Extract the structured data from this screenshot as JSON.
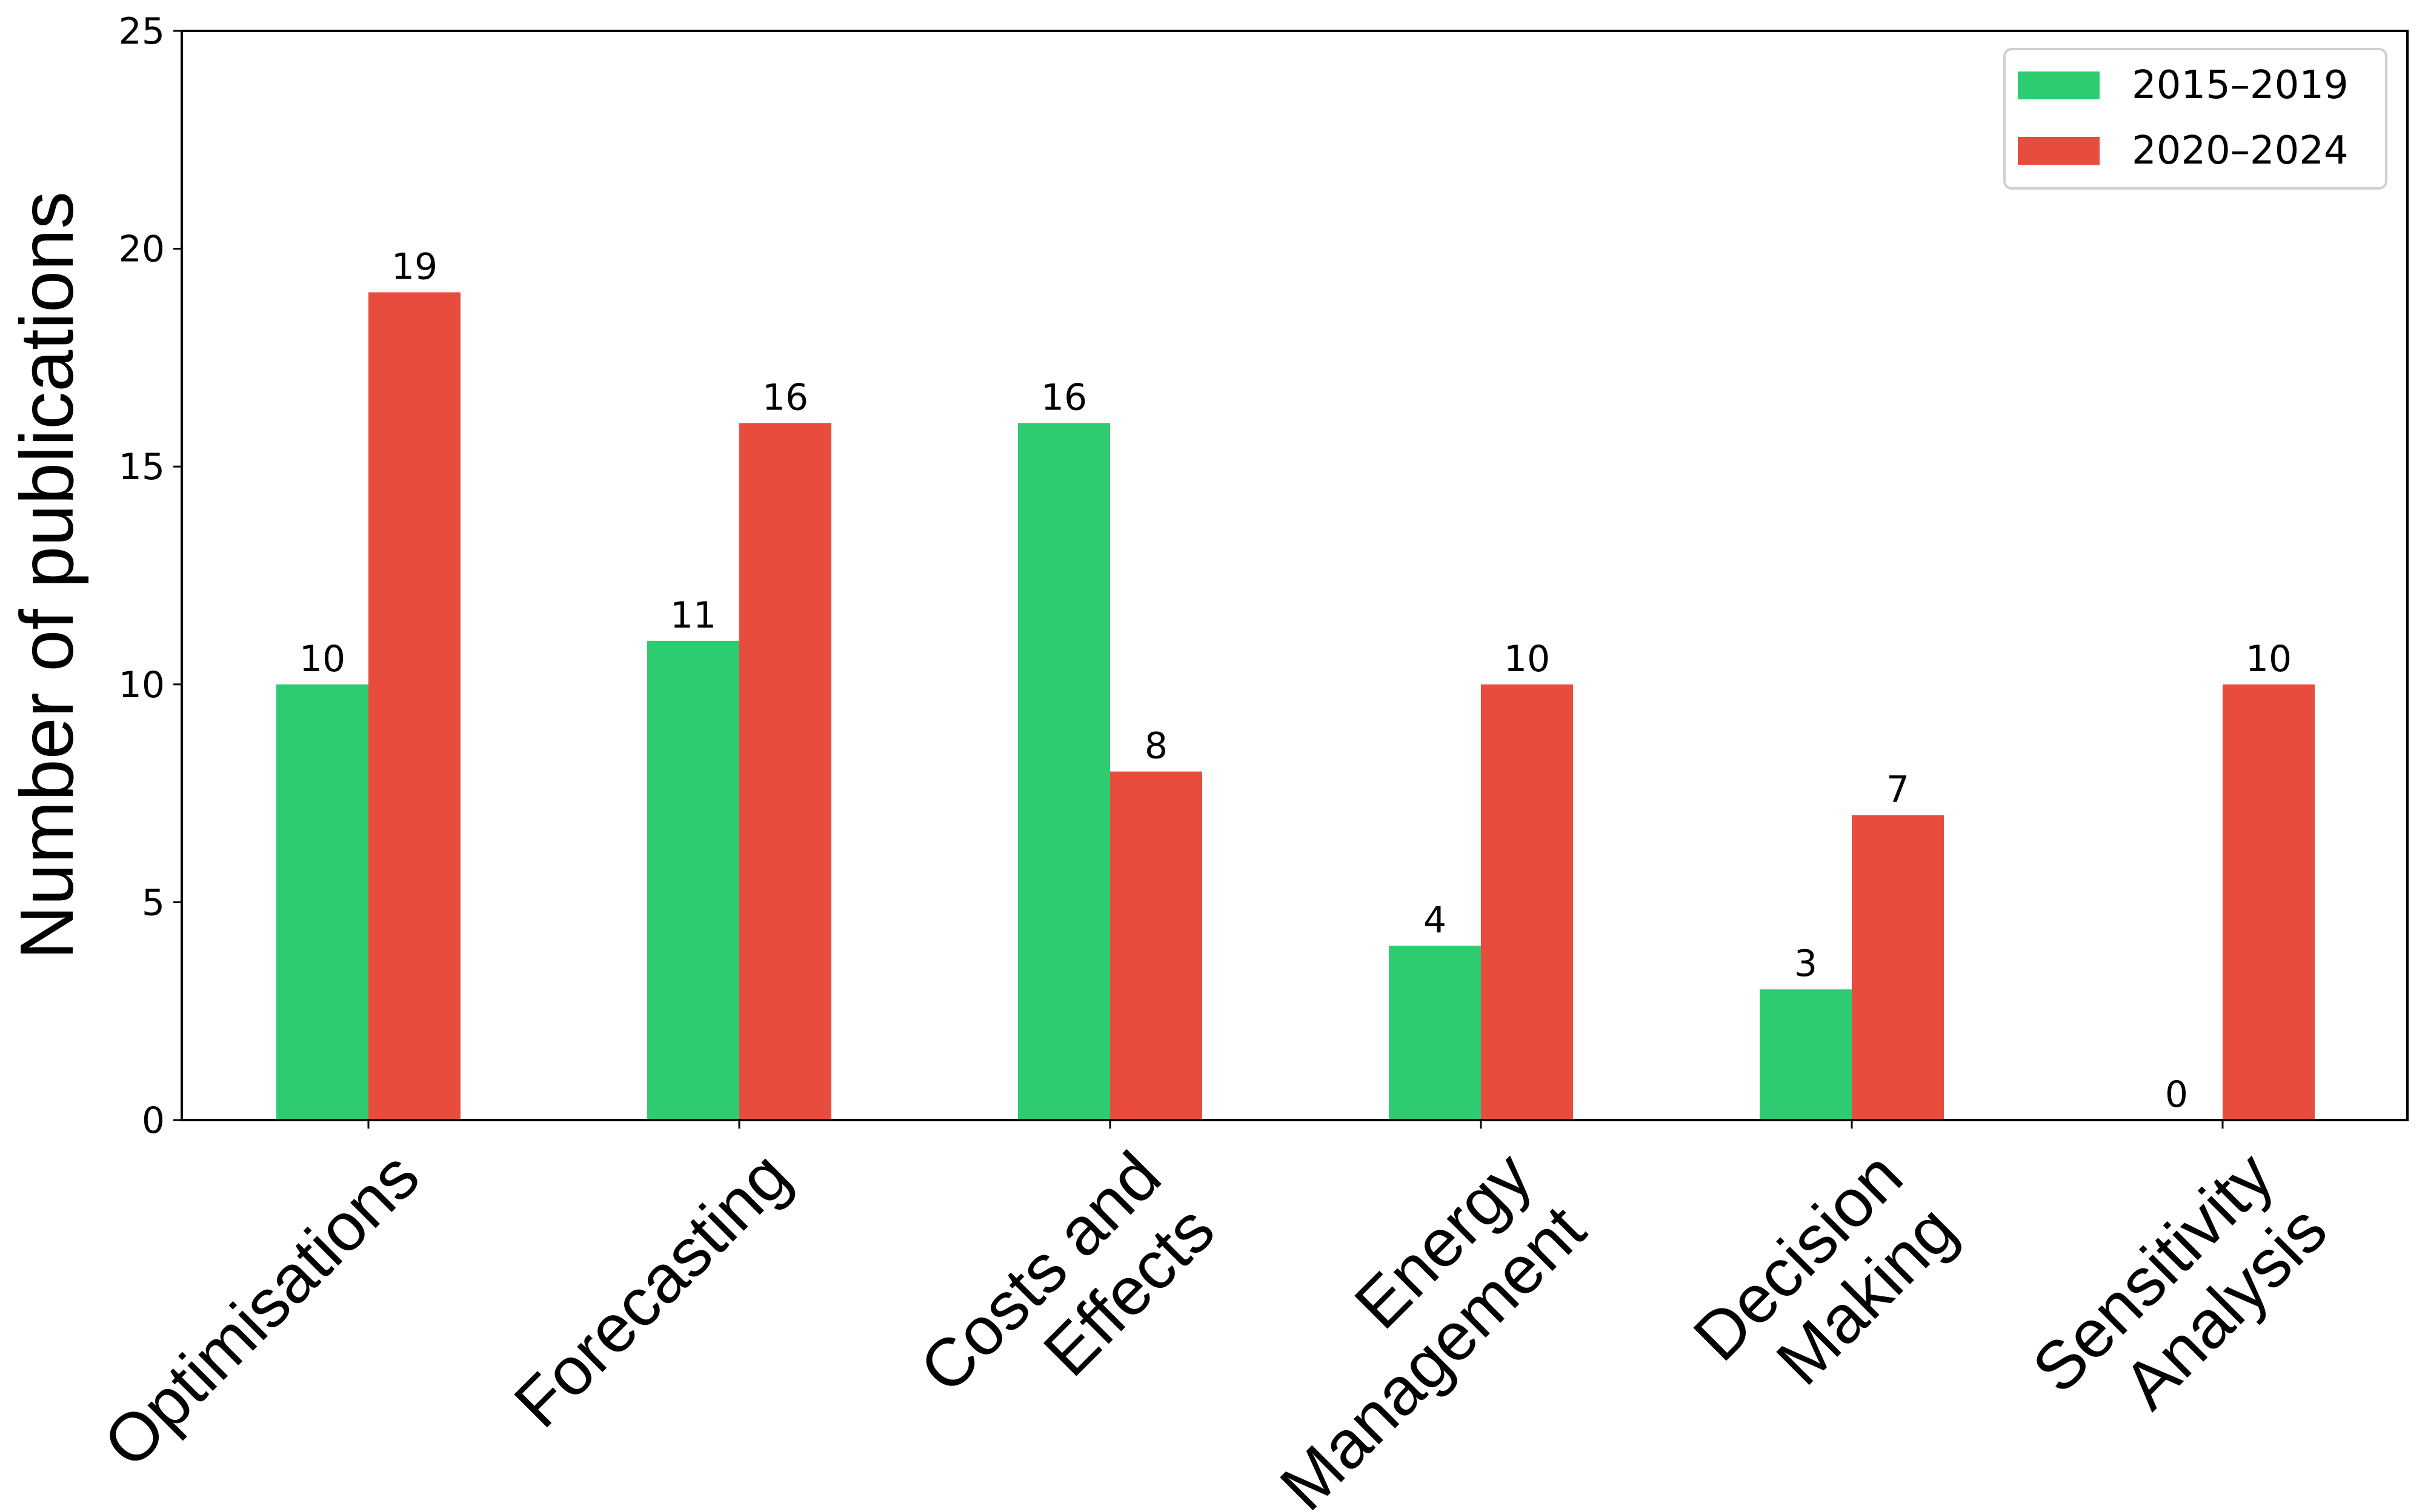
{
  "chart_data": {
    "type": "bar",
    "categories": [
      "Optimisations",
      "Forecasting",
      "Costs and\nEffects",
      "Energy\nManagement",
      "Decision\nMaking",
      "Sensitivity\nAnalysis"
    ],
    "series": [
      {
        "name": "2015–2019",
        "values": [
          10,
          11,
          16,
          4,
          3,
          0
        ],
        "color": "#2ecc71"
      },
      {
        "name": "2020–2024",
        "values": [
          19,
          16,
          8,
          10,
          7,
          10
        ],
        "color": "#e74c3c"
      }
    ],
    "title": "",
    "xlabel": "",
    "ylabel": "Number of publications",
    "ylim": [
      0,
      25
    ],
    "yticks": [
      0,
      5,
      10,
      15,
      20,
      25
    ],
    "grid": false,
    "legend_position": "top-right",
    "data_labels": true
  }
}
